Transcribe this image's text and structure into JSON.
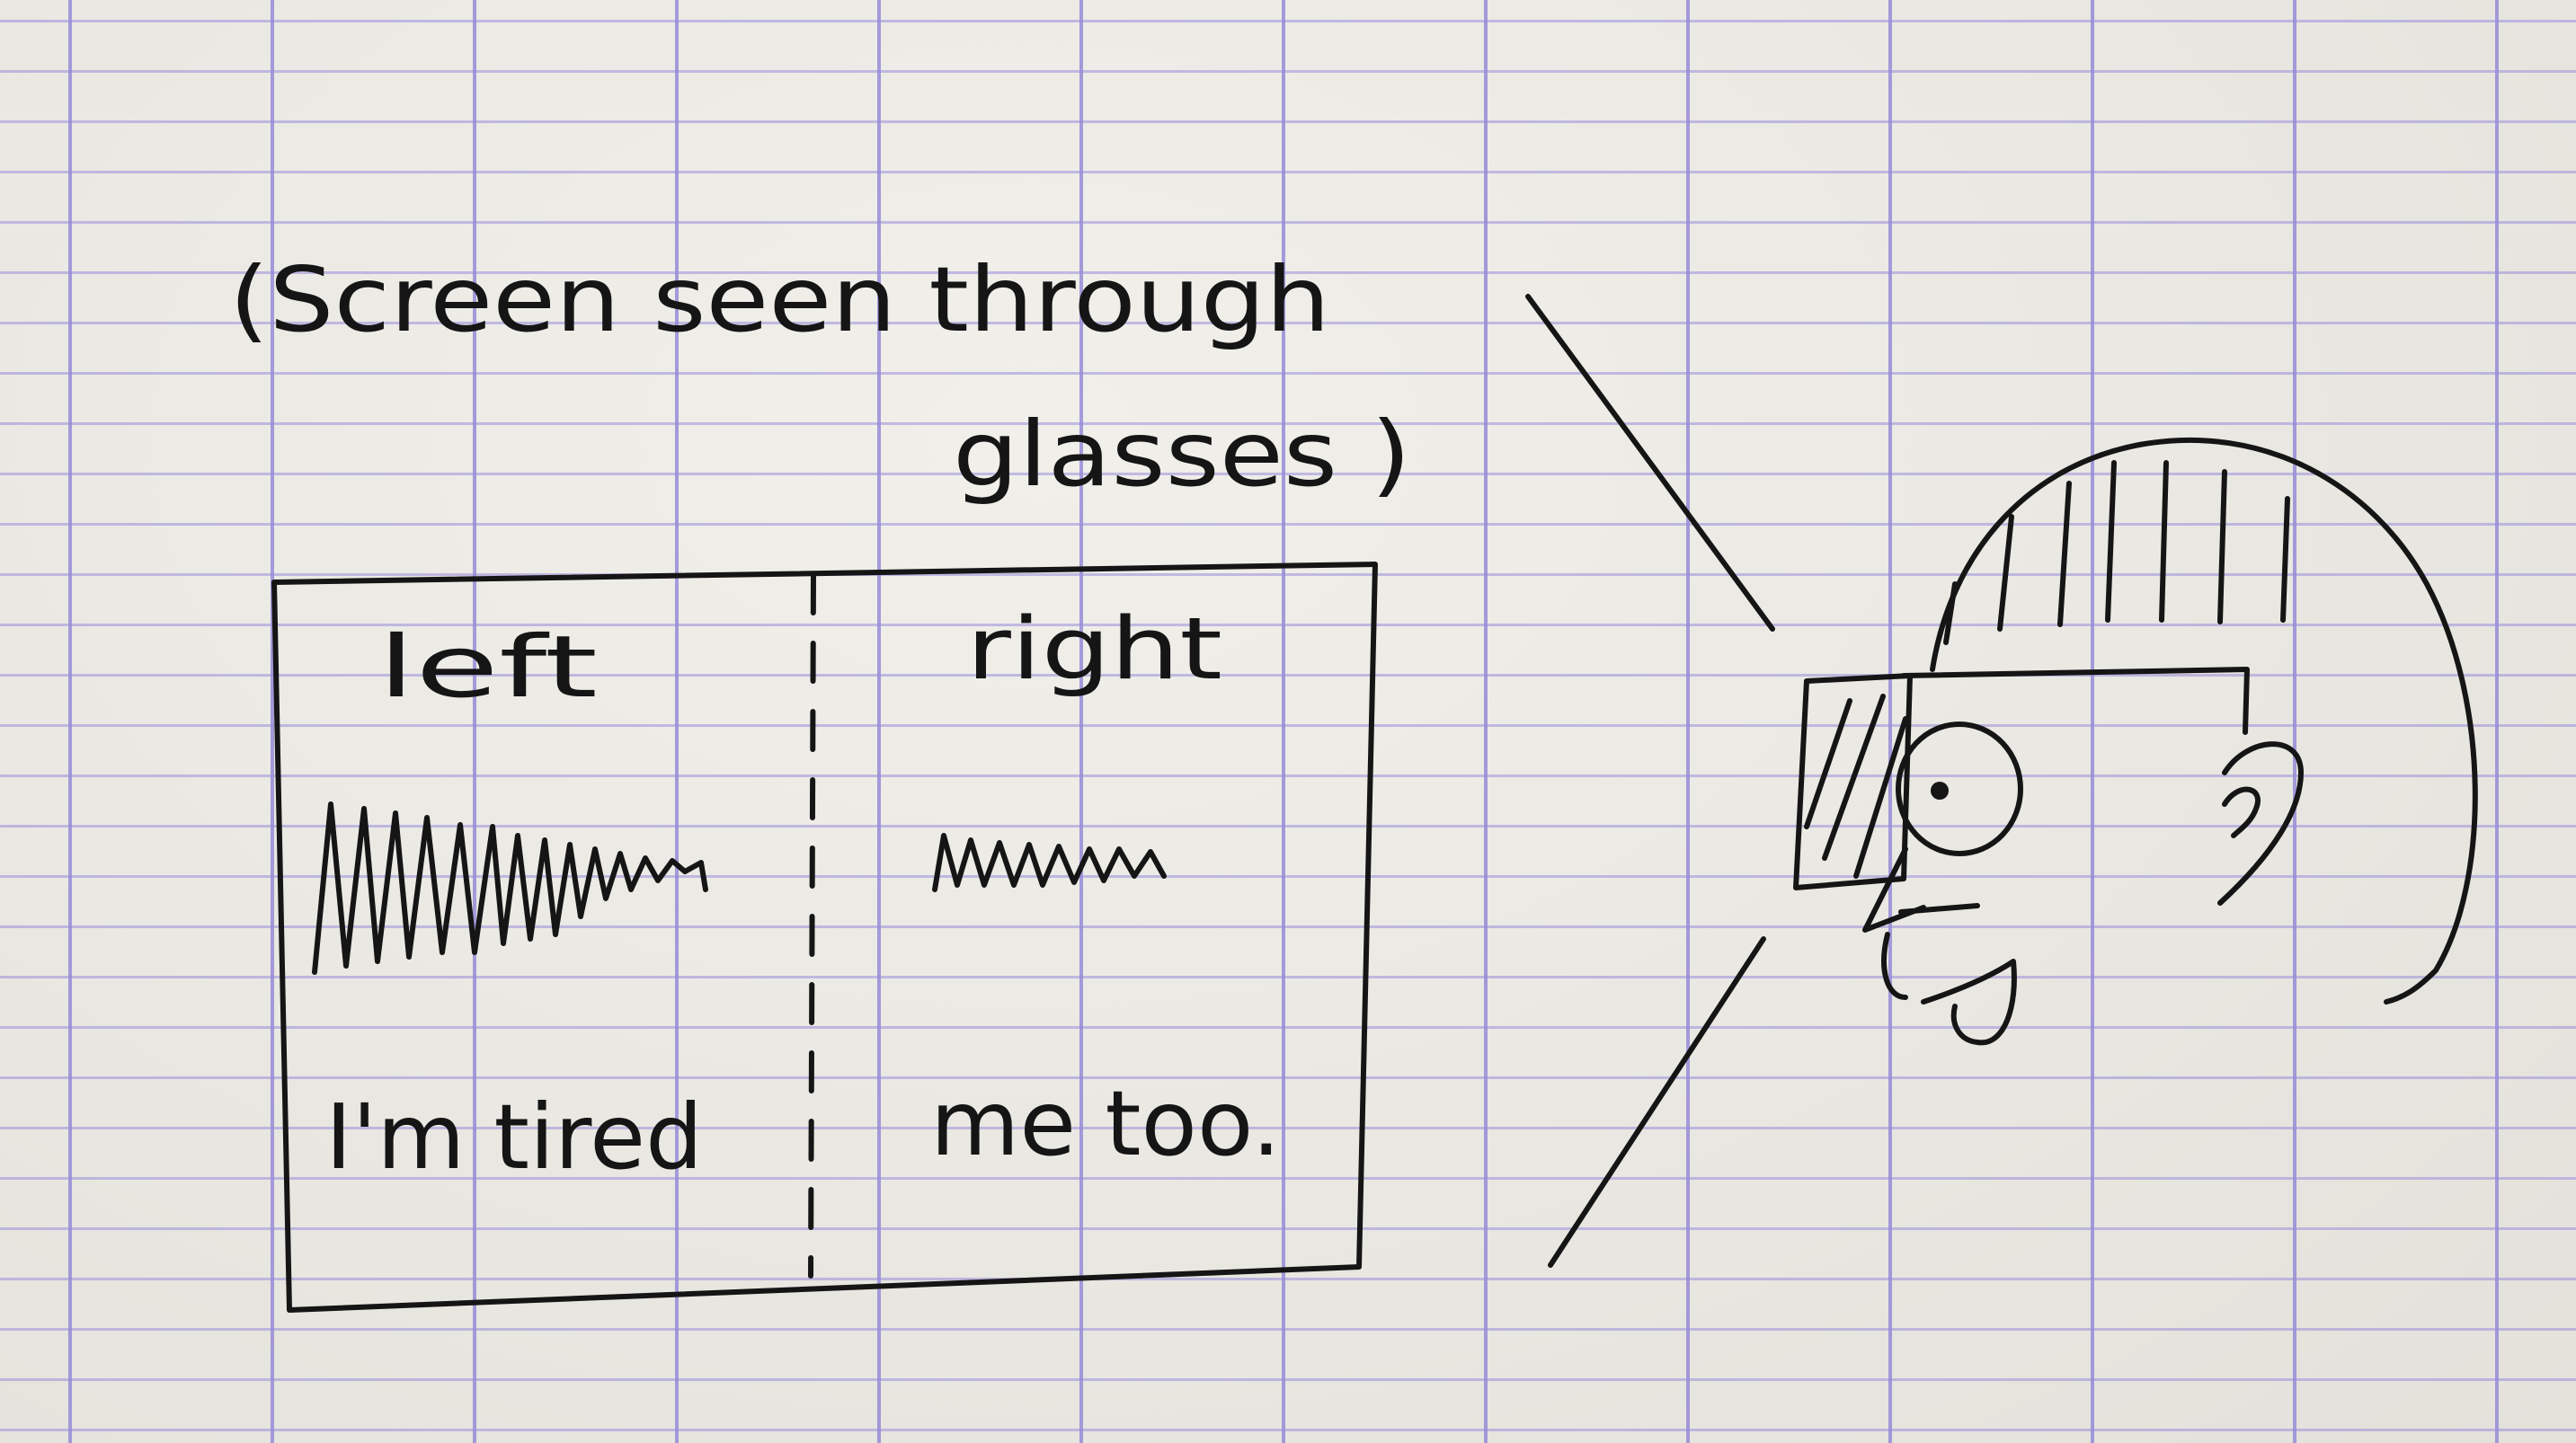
{
  "caption": {
    "line1": "(Screen seen through",
    "line2": "glasses )"
  },
  "screen": {
    "left_header": "left",
    "right_header": "right",
    "left_message": "I'm tired",
    "right_message": "me too."
  },
  "colors": {
    "ink": "#151515",
    "paper": "#eceae3",
    "grid": "#968cd7"
  }
}
